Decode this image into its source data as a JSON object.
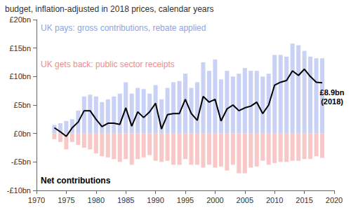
{
  "chart_data": {
    "type": "bar",
    "title": "budget, inflation-adjusted in 2018 prices, calendar years",
    "x": [
      1973,
      1974,
      1975,
      1976,
      1977,
      1978,
      1979,
      1980,
      1981,
      1982,
      1983,
      1984,
      1985,
      1986,
      1987,
      1988,
      1989,
      1990,
      1991,
      1992,
      1993,
      1994,
      1995,
      1996,
      1997,
      1998,
      1999,
      2000,
      2001,
      2002,
      2003,
      2004,
      2005,
      2006,
      2007,
      2008,
      2009,
      2010,
      2011,
      2012,
      2013,
      2014,
      2015,
      2016,
      2017,
      2018
    ],
    "series": [
      {
        "name": "UK pays: gross contributions, rebate applied",
        "type": "bar",
        "color": "#c9d1f4",
        "values": [
          1.5,
          1.8,
          2.2,
          2.5,
          4.0,
          6.5,
          6.8,
          6.5,
          5.5,
          6.0,
          6.5,
          7.0,
          9.0,
          7.0,
          8.0,
          7.8,
          7.0,
          8.5,
          6.0,
          8.0,
          9.0,
          9.2,
          10.5,
          8.0,
          9.0,
          12.5,
          11.0,
          13.0,
          9.5,
          11.0,
          10.0,
          10.5,
          11.5,
          11.0,
          11.0,
          10.0,
          10.5,
          13.8,
          13.8,
          13.5,
          15.8,
          15.5,
          14.5,
          13.5,
          13.2,
          13.2
        ]
      },
      {
        "name": "UK gets back: public sector receipts",
        "type": "bar",
        "color": "#f8c8c8",
        "values": [
          -1.0,
          -1.5,
          -2.8,
          -1.5,
          -2.0,
          -2.5,
          -2.8,
          -3.5,
          -4.0,
          -4.2,
          -4.5,
          -5.0,
          -4.5,
          -5.5,
          -4.5,
          -4.2,
          -3.8,
          -4.8,
          -5.0,
          -4.8,
          -5.5,
          -5.5,
          -4.5,
          -5.5,
          -5.5,
          -6.0,
          -5.5,
          -6.0,
          -5.8,
          -6.5,
          -5.5,
          -7.0,
          -7.0,
          -6.0,
          -5.8,
          -4.8,
          -5.5,
          -5.2,
          -5.0,
          -5.0,
          -4.8,
          -4.8,
          -4.5,
          -4.5,
          -4.0,
          -4.3
        ]
      },
      {
        "name": "Net contributions",
        "type": "line",
        "color": "#000000",
        "values": [
          1.0,
          0.3,
          -0.5,
          1.0,
          2.0,
          4.0,
          4.0,
          2.5,
          1.2,
          1.8,
          1.8,
          1.6,
          4.5,
          1.3,
          3.8,
          2.8,
          3.8,
          5.3,
          0.8,
          3.3,
          3.5,
          3.5,
          6.0,
          3.5,
          2.3,
          6.5,
          5.5,
          6.0,
          2.2,
          4.3,
          5.0,
          4.0,
          4.5,
          4.8,
          5.5,
          3.5,
          5.0,
          8.5,
          9.0,
          9.3,
          11.0,
          10.2,
          11.3,
          10.0,
          9.0,
          8.9
        ]
      }
    ],
    "annotations": [
      {
        "text": "£8.9bn\n(2018)",
        "x": 2018,
        "y": 8.9
      }
    ],
    "xlim": [
      1970,
      2020
    ],
    "xticks": [
      1970,
      1975,
      1980,
      1985,
      1990,
      1995,
      2000,
      2005,
      2010,
      2015,
      2020
    ],
    "ylim": [
      -10,
      20
    ],
    "yticks": [
      {
        "value": -10,
        "label": "-£10bn"
      },
      {
        "value": -5,
        "label": "-£5bn"
      },
      {
        "value": 0,
        "label": "£0bn"
      },
      {
        "value": 5,
        "label": "£5bn"
      },
      {
        "value": 10,
        "label": "£10bn"
      },
      {
        "value": 15,
        "label": "£15bn"
      },
      {
        "value": 20,
        "label": "£20bn"
      }
    ],
    "grid": false
  }
}
